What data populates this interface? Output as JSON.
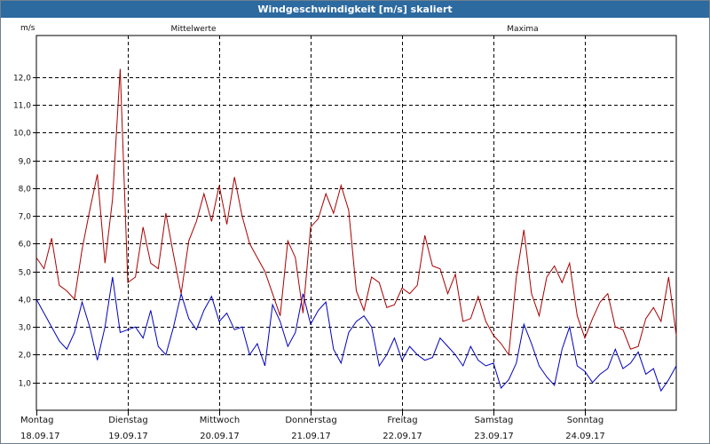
{
  "window": {
    "title": "Windgeschwindigkeit [m/s] skaliert"
  },
  "chart_data": {
    "type": "line",
    "ylabel": "m/s",
    "ylim": [
      0,
      13.5
    ],
    "yticks": [
      1.0,
      2.0,
      3.0,
      4.0,
      5.0,
      6.0,
      7.0,
      8.0,
      9.0,
      10.0,
      11.0,
      12.0
    ],
    "ytick_labels": [
      "1,0",
      "2,0",
      "3,0",
      "4,0",
      "5,0",
      "6,0",
      "7,0",
      "8,0",
      "9,0",
      "10,0",
      "11,0",
      "12,0"
    ],
    "xlim_hours": [
      0,
      168
    ],
    "days": [
      {
        "weekday": "Montag",
        "date": "18.09.17"
      },
      {
        "weekday": "Dienstag",
        "date": "19.09.17"
      },
      {
        "weekday": "Mittwoch",
        "date": "20.09.17"
      },
      {
        "weekday": "Donnerstag",
        "date": "21.09.17"
      },
      {
        "weekday": "Freitag",
        "date": "22.09.17"
      },
      {
        "weekday": "Samstag",
        "date": "23.09.17"
      },
      {
        "weekday": "Sonntag",
        "date": "24.09.17"
      }
    ],
    "grid": true,
    "series": [
      {
        "name": "Mittelwerte",
        "color": "#0000c0",
        "x_hours": [
          0,
          2,
          4,
          6,
          8,
          10,
          12,
          14,
          16,
          18,
          20,
          22,
          24,
          26,
          28,
          30,
          32,
          34,
          36,
          38,
          40,
          42,
          44,
          46,
          48,
          50,
          52,
          54,
          56,
          58,
          60,
          62,
          64,
          66,
          68,
          70,
          72,
          74,
          76,
          78,
          80,
          82,
          84,
          86,
          88,
          90,
          92,
          94,
          96,
          98,
          100,
          102,
          104,
          106,
          108,
          110,
          112,
          114,
          116,
          118,
          120,
          122,
          124,
          126,
          128,
          130,
          132,
          134,
          136,
          138,
          140,
          142,
          144,
          146,
          148,
          150,
          152,
          154,
          156,
          158,
          160,
          162,
          164,
          166,
          168
        ],
        "values": [
          4.0,
          3.5,
          3.0,
          2.5,
          2.2,
          2.8,
          3.9,
          3.0,
          1.8,
          3.0,
          4.8,
          2.8,
          2.9,
          3.0,
          2.6,
          3.6,
          2.3,
          2.0,
          3.0,
          4.2,
          3.3,
          2.9,
          3.6,
          4.1,
          3.2,
          3.5,
          2.9,
          3.0,
          2.0,
          2.4,
          1.6,
          3.8,
          3.2,
          2.3,
          2.8,
          4.2,
          3.1,
          3.6,
          3.9,
          2.2,
          1.7,
          2.8,
          3.2,
          3.4,
          3.0,
          1.6,
          2.0,
          2.6,
          1.8,
          2.3,
          2.0,
          1.8,
          1.9,
          2.6,
          2.3,
          2.0,
          1.6,
          2.3,
          1.8,
          1.6,
          1.7,
          0.8,
          1.1,
          1.7,
          3.1,
          2.4,
          1.6,
          1.2,
          0.9,
          2.2,
          3.0,
          1.6,
          1.4,
          1.0,
          1.3,
          1.5,
          2.2,
          1.5,
          1.7,
          2.1,
          1.3,
          1.5,
          0.7,
          1.1,
          1.6
        ]
      },
      {
        "name": "Maxima",
        "color": "#aa0000",
        "x_hours": [
          0,
          2,
          4,
          6,
          8,
          10,
          12,
          14,
          16,
          18,
          20,
          22,
          24,
          26,
          28,
          30,
          32,
          34,
          36,
          38,
          40,
          42,
          44,
          46,
          48,
          50,
          52,
          54,
          56,
          58,
          60,
          62,
          64,
          66,
          68,
          70,
          72,
          74,
          76,
          78,
          80,
          82,
          84,
          86,
          88,
          90,
          92,
          94,
          96,
          98,
          100,
          102,
          104,
          106,
          108,
          110,
          112,
          114,
          116,
          118,
          120,
          122,
          124,
          126,
          128,
          130,
          132,
          134,
          136,
          138,
          140,
          142,
          144,
          146,
          148,
          150,
          152,
          154,
          156,
          158,
          160,
          162,
          164,
          166,
          168
        ],
        "values": [
          5.5,
          5.1,
          6.2,
          4.5,
          4.3,
          4.0,
          5.8,
          7.2,
          8.5,
          5.3,
          7.6,
          12.3,
          4.6,
          4.8,
          6.6,
          5.3,
          5.1,
          7.1,
          5.6,
          4.2,
          6.1,
          6.8,
          7.8,
          6.8,
          8.1,
          6.7,
          8.4,
          7.0,
          6.0,
          5.5,
          5.0,
          4.2,
          3.4,
          6.1,
          5.5,
          3.5,
          6.6,
          6.9,
          7.8,
          7.1,
          8.1,
          7.2,
          4.3,
          3.6,
          4.8,
          4.6,
          3.7,
          3.8,
          4.4,
          4.2,
          4.5,
          6.3,
          5.2,
          5.1,
          4.2,
          4.9,
          3.2,
          3.3,
          4.1,
          3.2,
          2.7,
          2.4,
          2.0,
          4.8,
          6.5,
          4.2,
          3.4,
          4.8,
          5.2,
          4.6,
          5.3,
          3.4,
          2.6,
          3.3,
          3.9,
          4.2,
          3.0,
          2.9,
          2.2,
          2.3,
          3.3,
          3.7,
          3.2,
          4.8,
          2.7
        ]
      }
    ]
  }
}
